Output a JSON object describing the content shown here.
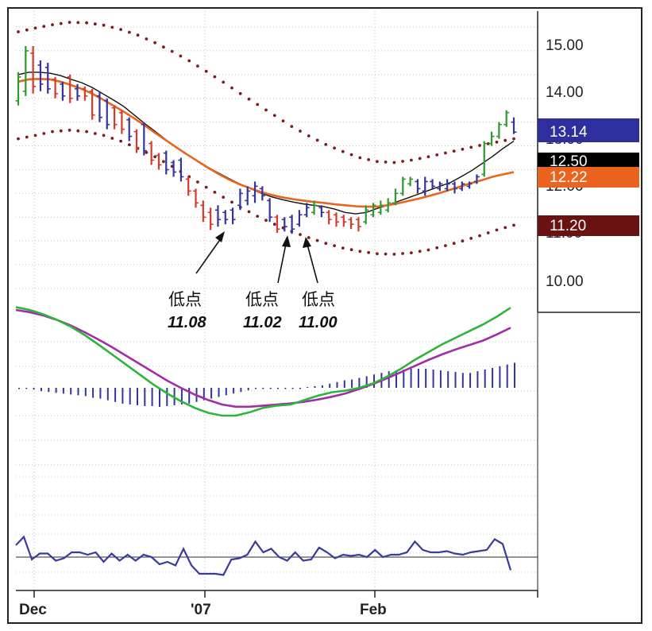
{
  "chart_data": {
    "type": "bar",
    "subtype": "ohlc-with-indicators",
    "x_labels": [
      "Dec",
      "'07",
      "Feb"
    ],
    "y_ticks": [
      "15.00",
      "14.00",
      "13.00",
      "12.00",
      "11.00",
      "10.00"
    ],
    "ylim": [
      9.5,
      15.7
    ],
    "grid": true,
    "price_bars": [
      {
        "low": 13.7,
        "high": 14.4,
        "open": 13.8,
        "close": 14.3,
        "color": "#2e9a2e"
      },
      {
        "low": 13.9,
        "high": 14.95,
        "open": 14.0,
        "close": 14.85,
        "color": "#2e9a2e"
      },
      {
        "low": 13.95,
        "high": 14.95,
        "open": 14.8,
        "close": 14.1,
        "color": "#d43b2a"
      },
      {
        "low": 14.0,
        "high": 14.65,
        "open": 14.55,
        "close": 14.15,
        "color": "#34349a"
      },
      {
        "low": 13.95,
        "high": 14.6,
        "open": 14.5,
        "close": 14.05,
        "color": "#34349a"
      },
      {
        "low": 13.85,
        "high": 14.3,
        "open": 14.25,
        "close": 13.95,
        "color": "#d43b2a"
      },
      {
        "low": 13.8,
        "high": 14.2,
        "open": 14.15,
        "close": 13.9,
        "color": "#34349a"
      },
      {
        "low": 13.75,
        "high": 14.35,
        "open": 14.3,
        "close": 13.85,
        "color": "#d43b2a"
      },
      {
        "low": 13.8,
        "high": 14.15,
        "open": 14.05,
        "close": 13.9,
        "color": "#34349a"
      },
      {
        "low": 13.8,
        "high": 14.1,
        "open": 14.05,
        "close": 13.9,
        "color": "#d43b2a"
      },
      {
        "low": 13.4,
        "high": 14.05,
        "open": 14.0,
        "close": 13.5,
        "color": "#d43b2a"
      },
      {
        "low": 13.35,
        "high": 14.0,
        "open": 13.9,
        "close": 13.45,
        "color": "#34349a"
      },
      {
        "low": 13.2,
        "high": 13.85,
        "open": 13.8,
        "close": 13.3,
        "color": "#34349a"
      },
      {
        "low": 13.2,
        "high": 13.7,
        "open": 13.65,
        "close": 13.3,
        "color": "#d43b2a"
      },
      {
        "low": 13.1,
        "high": 13.6,
        "open": 13.55,
        "close": 13.2,
        "color": "#d43b2a"
      },
      {
        "low": 12.95,
        "high": 13.45,
        "open": 13.4,
        "close": 13.05,
        "color": "#34349a"
      },
      {
        "low": 12.7,
        "high": 13.2,
        "open": 13.15,
        "close": 12.8,
        "color": "#d43b2a"
      },
      {
        "low": 12.65,
        "high": 13.35,
        "open": 13.3,
        "close": 12.75,
        "color": "#34349a"
      },
      {
        "low": 12.45,
        "high": 12.95,
        "open": 12.9,
        "close": 12.55,
        "color": "#d43b2a"
      },
      {
        "low": 12.35,
        "high": 12.7,
        "open": 12.65,
        "close": 12.45,
        "color": "#d43b2a"
      },
      {
        "low": 12.25,
        "high": 12.75,
        "open": 12.7,
        "close": 12.35,
        "color": "#34349a"
      },
      {
        "low": 12.2,
        "high": 12.55,
        "open": 12.5,
        "close": 12.3,
        "color": "#34349a"
      },
      {
        "low": 12.1,
        "high": 12.6,
        "open": 12.55,
        "close": 12.2,
        "color": "#34349a"
      },
      {
        "low": 11.8,
        "high": 12.2,
        "open": 12.15,
        "close": 11.9,
        "color": "#d43b2a"
      },
      {
        "low": 11.55,
        "high": 11.95,
        "open": 11.9,
        "close": 11.65,
        "color": "#d43b2a"
      },
      {
        "low": 11.25,
        "high": 11.7,
        "open": 11.6,
        "close": 11.35,
        "color": "#d43b2a"
      },
      {
        "low": 11.08,
        "high": 11.55,
        "open": 11.45,
        "close": 11.2,
        "color": "#d43b2a"
      },
      {
        "low": 11.15,
        "high": 11.6,
        "open": 11.5,
        "close": 11.3,
        "color": "#34349a"
      },
      {
        "low": 11.2,
        "high": 11.5,
        "open": 11.45,
        "close": 11.3,
        "color": "#34349a"
      },
      {
        "low": 11.2,
        "high": 11.55,
        "open": 11.5,
        "close": 11.3,
        "color": "#34349a"
      },
      {
        "low": 11.5,
        "high": 11.95,
        "open": 11.6,
        "close": 11.85,
        "color": "#34349a"
      },
      {
        "low": 11.6,
        "high": 12.0,
        "open": 11.7,
        "close": 11.9,
        "color": "#34349a"
      },
      {
        "low": 11.65,
        "high": 12.1,
        "open": 11.8,
        "close": 12.0,
        "color": "#34349a"
      },
      {
        "low": 11.7,
        "high": 12.0,
        "open": 11.95,
        "close": 11.8,
        "color": "#34349a"
      },
      {
        "low": 11.25,
        "high": 11.75,
        "open": 11.7,
        "close": 11.35,
        "color": "#34349a"
      },
      {
        "low": 11.02,
        "high": 11.4,
        "open": 11.35,
        "close": 11.1,
        "color": "#d43b2a"
      },
      {
        "low": 11.05,
        "high": 11.35,
        "open": 11.3,
        "close": 11.15,
        "color": "#34349a"
      },
      {
        "low": 11.0,
        "high": 11.4,
        "open": 11.35,
        "close": 11.1,
        "color": "#34349a"
      },
      {
        "low": 11.15,
        "high": 11.5,
        "open": 11.2,
        "close": 11.4,
        "color": "#34349a"
      },
      {
        "low": 11.35,
        "high": 11.65,
        "open": 11.4,
        "close": 11.55,
        "color": "#34349a"
      },
      {
        "low": 11.4,
        "high": 11.7,
        "open": 11.45,
        "close": 11.6,
        "color": "#2e9a2e"
      },
      {
        "low": 11.35,
        "high": 11.6,
        "open": 11.55,
        "close": 11.45,
        "color": "#34349a"
      },
      {
        "low": 11.2,
        "high": 11.5,
        "open": 11.45,
        "close": 11.3,
        "color": "#d43b2a"
      },
      {
        "low": 11.15,
        "high": 11.45,
        "open": 11.4,
        "close": 11.25,
        "color": "#d43b2a"
      },
      {
        "low": 11.15,
        "high": 11.4,
        "open": 11.35,
        "close": 11.25,
        "color": "#d43b2a"
      },
      {
        "low": 11.1,
        "high": 11.35,
        "open": 11.3,
        "close": 11.2,
        "color": "#d43b2a"
      },
      {
        "low": 11.05,
        "high": 11.35,
        "open": 11.3,
        "close": 11.15,
        "color": "#d43b2a"
      },
      {
        "low": 11.2,
        "high": 11.6,
        "open": 11.25,
        "close": 11.5,
        "color": "#2e9a2e"
      },
      {
        "low": 11.35,
        "high": 11.65,
        "open": 11.4,
        "close": 11.6,
        "color": "#2e9a2e"
      },
      {
        "low": 11.4,
        "high": 11.7,
        "open": 11.45,
        "close": 11.6,
        "color": "#2e9a2e"
      },
      {
        "low": 11.45,
        "high": 11.75,
        "open": 11.5,
        "close": 11.65,
        "color": "#2e9a2e"
      },
      {
        "low": 11.6,
        "high": 11.95,
        "open": 11.65,
        "close": 11.85,
        "color": "#2e9a2e"
      },
      {
        "low": 11.8,
        "high": 12.2,
        "open": 11.85,
        "close": 12.15,
        "color": "#2e9a2e"
      },
      {
        "low": 12.0,
        "high": 12.2,
        "open": 12.05,
        "close": 12.15,
        "color": "#2e9a2e"
      },
      {
        "low": 11.85,
        "high": 12.15,
        "open": 12.1,
        "close": 11.95,
        "color": "#34349a"
      },
      {
        "low": 11.8,
        "high": 12.2,
        "open": 11.9,
        "close": 12.1,
        "color": "#34349a"
      },
      {
        "low": 11.95,
        "high": 12.15,
        "open": 12.1,
        "close": 12.0,
        "color": "#34349a"
      },
      {
        "low": 11.9,
        "high": 12.1,
        "open": 11.95,
        "close": 12.05,
        "color": "#34349a"
      },
      {
        "low": 11.9,
        "high": 12.15,
        "open": 11.95,
        "close": 12.05,
        "color": "#34349a"
      },
      {
        "low": 11.85,
        "high": 12.1,
        "open": 12.05,
        "close": 11.95,
        "color": "#34349a"
      },
      {
        "low": 11.9,
        "high": 12.1,
        "open": 11.95,
        "close": 12.05,
        "color": "#34349a"
      },
      {
        "low": 11.95,
        "high": 12.1,
        "open": 12.0,
        "close": 12.05,
        "color": "#34349a"
      },
      {
        "low": 12.05,
        "high": 12.25,
        "open": 12.1,
        "close": 12.2,
        "color": "#34349a"
      },
      {
        "low": 12.2,
        "high": 12.95,
        "open": 12.25,
        "close": 12.9,
        "color": "#2e9a2e"
      },
      {
        "low": 12.85,
        "high": 13.15,
        "open": 12.9,
        "close": 13.05,
        "color": "#2e9a2e"
      },
      {
        "low": 13.0,
        "high": 13.35,
        "open": 13.05,
        "close": 13.3,
        "color": "#2e9a2e"
      },
      {
        "low": 13.25,
        "high": 13.6,
        "open": 13.3,
        "close": 13.55,
        "color": "#2e9a2e"
      },
      {
        "low": 13.1,
        "high": 13.45,
        "open": 13.35,
        "close": 13.14,
        "color": "#34349a"
      }
    ],
    "overlays": [
      {
        "name": "short-ma",
        "color": "#111111",
        "values": [
          14.35,
          14.4,
          14.4,
          14.38,
          14.33,
          14.25,
          14.18,
          14.08,
          13.95,
          13.82,
          13.68,
          13.5,
          13.32,
          13.15,
          12.98,
          12.82,
          12.67,
          12.53,
          12.4,
          12.28,
          12.16,
          12.05,
          11.95,
          11.86,
          11.78,
          11.72,
          11.67,
          11.63,
          11.6,
          11.57,
          11.52,
          11.45,
          11.42,
          11.45,
          11.53,
          11.6,
          11.68,
          11.76,
          11.84,
          11.92,
          12.0,
          12.08,
          12.2,
          12.33,
          12.48,
          12.63,
          12.8,
          12.95
        ]
      },
      {
        "name": "long-ma",
        "color": "#e8651e",
        "values": [
          14.2,
          14.25,
          14.26,
          14.25,
          14.2,
          14.13,
          14.05,
          13.95,
          13.83,
          13.7,
          13.57,
          13.43,
          13.28,
          13.12,
          12.97,
          12.82,
          12.67,
          12.53,
          12.39,
          12.26,
          12.14,
          12.04,
          11.96,
          11.88,
          11.82,
          11.77,
          11.73,
          11.7,
          11.67,
          11.65,
          11.62,
          11.6,
          11.58,
          11.57,
          11.57,
          11.6,
          11.64,
          11.69,
          11.74,
          11.8,
          11.86,
          11.93,
          12.0,
          12.07,
          12.13,
          12.2,
          12.25,
          12.3
        ]
      },
      {
        "name": "upper-band",
        "color": "#7a1f1f",
        "dotted": true,
        "values": [
          15.25,
          15.33,
          15.4,
          15.45,
          15.44,
          15.39,
          15.3,
          15.18,
          15.02,
          14.84,
          14.64,
          14.42,
          14.19,
          13.95,
          13.72,
          13.49,
          13.26,
          13.06,
          12.88,
          12.73,
          12.6,
          12.52,
          12.5,
          12.55,
          12.62,
          12.7,
          12.78,
          12.86,
          12.93,
          13.0
        ]
      },
      {
        "name": "lower-band",
        "color": "#7a1f1f",
        "dotted": true,
        "values": [
          13.0,
          13.07,
          13.15,
          13.18,
          13.15,
          13.07,
          12.95,
          12.8,
          12.62,
          12.42,
          12.2,
          11.98,
          11.77,
          11.56,
          11.37,
          11.2,
          11.05,
          10.92,
          10.8,
          10.7,
          10.63,
          10.58,
          10.57,
          10.6,
          10.66,
          10.75,
          10.85,
          10.96,
          11.08,
          11.18
        ]
      }
    ],
    "price_badges": [
      {
        "text": "13.14",
        "value": 13.14,
        "color": "#2e2e9e"
      },
      {
        "text": "12.50",
        "value": 12.5,
        "color": "#000000"
      },
      {
        "text": "12.22",
        "value": 12.22,
        "color": "#ea6420"
      },
      {
        "text": "11.20",
        "value": 11.2,
        "color": "#6a1212"
      }
    ],
    "annotations": [
      {
        "label": "低点",
        "value": "11.08",
        "target_bar": 26
      },
      {
        "label": "低点",
        "value": "11.02",
        "target_bar": 35
      },
      {
        "label": "低点",
        "value": "11.00",
        "target_bar": 37
      }
    ],
    "macd": {
      "green_line": [
        0.95,
        0.9,
        0.82,
        0.72,
        0.6,
        0.45,
        0.28,
        0.1,
        -0.08,
        -0.26,
        -0.44,
        -0.6,
        -0.74,
        -0.86,
        -0.95,
        -1.0,
        -1.0,
        -0.94,
        -0.86,
        -0.82,
        -0.8,
        -0.72,
        -0.64,
        -0.58,
        -0.55,
        -0.5,
        -0.42,
        -0.3,
        -0.16,
        0.0,
        0.14,
        0.28,
        0.4,
        0.52,
        0.64,
        0.78,
        0.94
      ],
      "purple_line": [
        0.9,
        0.86,
        0.8,
        0.72,
        0.62,
        0.5,
        0.37,
        0.23,
        0.08,
        -0.07,
        -0.22,
        -0.37,
        -0.5,
        -0.62,
        -0.72,
        -0.8,
        -0.84,
        -0.84,
        -0.82,
        -0.8,
        -0.78,
        -0.75,
        -0.71,
        -0.66,
        -0.6,
        -0.52,
        -0.43,
        -0.33,
        -0.22,
        -0.11,
        0.0,
        0.1,
        0.19,
        0.27,
        0.35,
        0.46,
        0.58
      ],
      "histogram": [
        0.0,
        0.0,
        -0.02,
        -0.04,
        -0.05,
        -0.06,
        -0.07,
        -0.08,
        -0.09,
        -0.1,
        -0.12,
        -0.13,
        -0.15,
        -0.17,
        -0.19,
        -0.2,
        -0.21,
        -0.22,
        -0.22,
        -0.23,
        -0.22,
        -0.21,
        -0.2,
        -0.19,
        -0.17,
        -0.15,
        -0.13,
        -0.11,
        -0.09,
        -0.07,
        -0.05,
        -0.03,
        0.0,
        0.0,
        0.0,
        0.0,
        0.0,
        0.0,
        0.0,
        0.01,
        0.02,
        0.03,
        0.05,
        0.07,
        0.09,
        0.1,
        0.12,
        0.14,
        0.16,
        0.18,
        0.2,
        0.21,
        0.22,
        0.23,
        0.23,
        0.23,
        0.22,
        0.21,
        0.2,
        0.19,
        0.18,
        0.18,
        0.2,
        0.22,
        0.24,
        0.26,
        0.28,
        0.3
      ]
    },
    "oscillator": {
      "values": [
        0.5,
        0.85,
        -0.1,
        0.15,
        0.15,
        -0.15,
        -0.05,
        0.2,
        0.2,
        0.1,
        0.2,
        -0.2,
        0.15,
        -0.15,
        0.1,
        -0.15,
        0.1,
        0.0,
        -0.3,
        -0.2,
        -0.35,
        0.35,
        -0.35,
        -0.7,
        -0.7,
        -0.7,
        -0.75,
        -0.1,
        -0.05,
        0.1,
        0.65,
        0.2,
        0.35,
        0.0,
        -0.15,
        0.2,
        -0.15,
        -0.1,
        0.4,
        0.2,
        -0.05,
        0.1,
        0.05,
        0.1,
        0.0,
        0.3,
        0.0,
        0.1,
        0.1,
        0.2,
        0.65,
        0.3,
        0.2,
        0.2,
        0.25,
        0.15,
        0.1,
        0.2,
        0.25,
        0.3,
        0.75,
        0.55,
        -0.55
      ]
    }
  }
}
